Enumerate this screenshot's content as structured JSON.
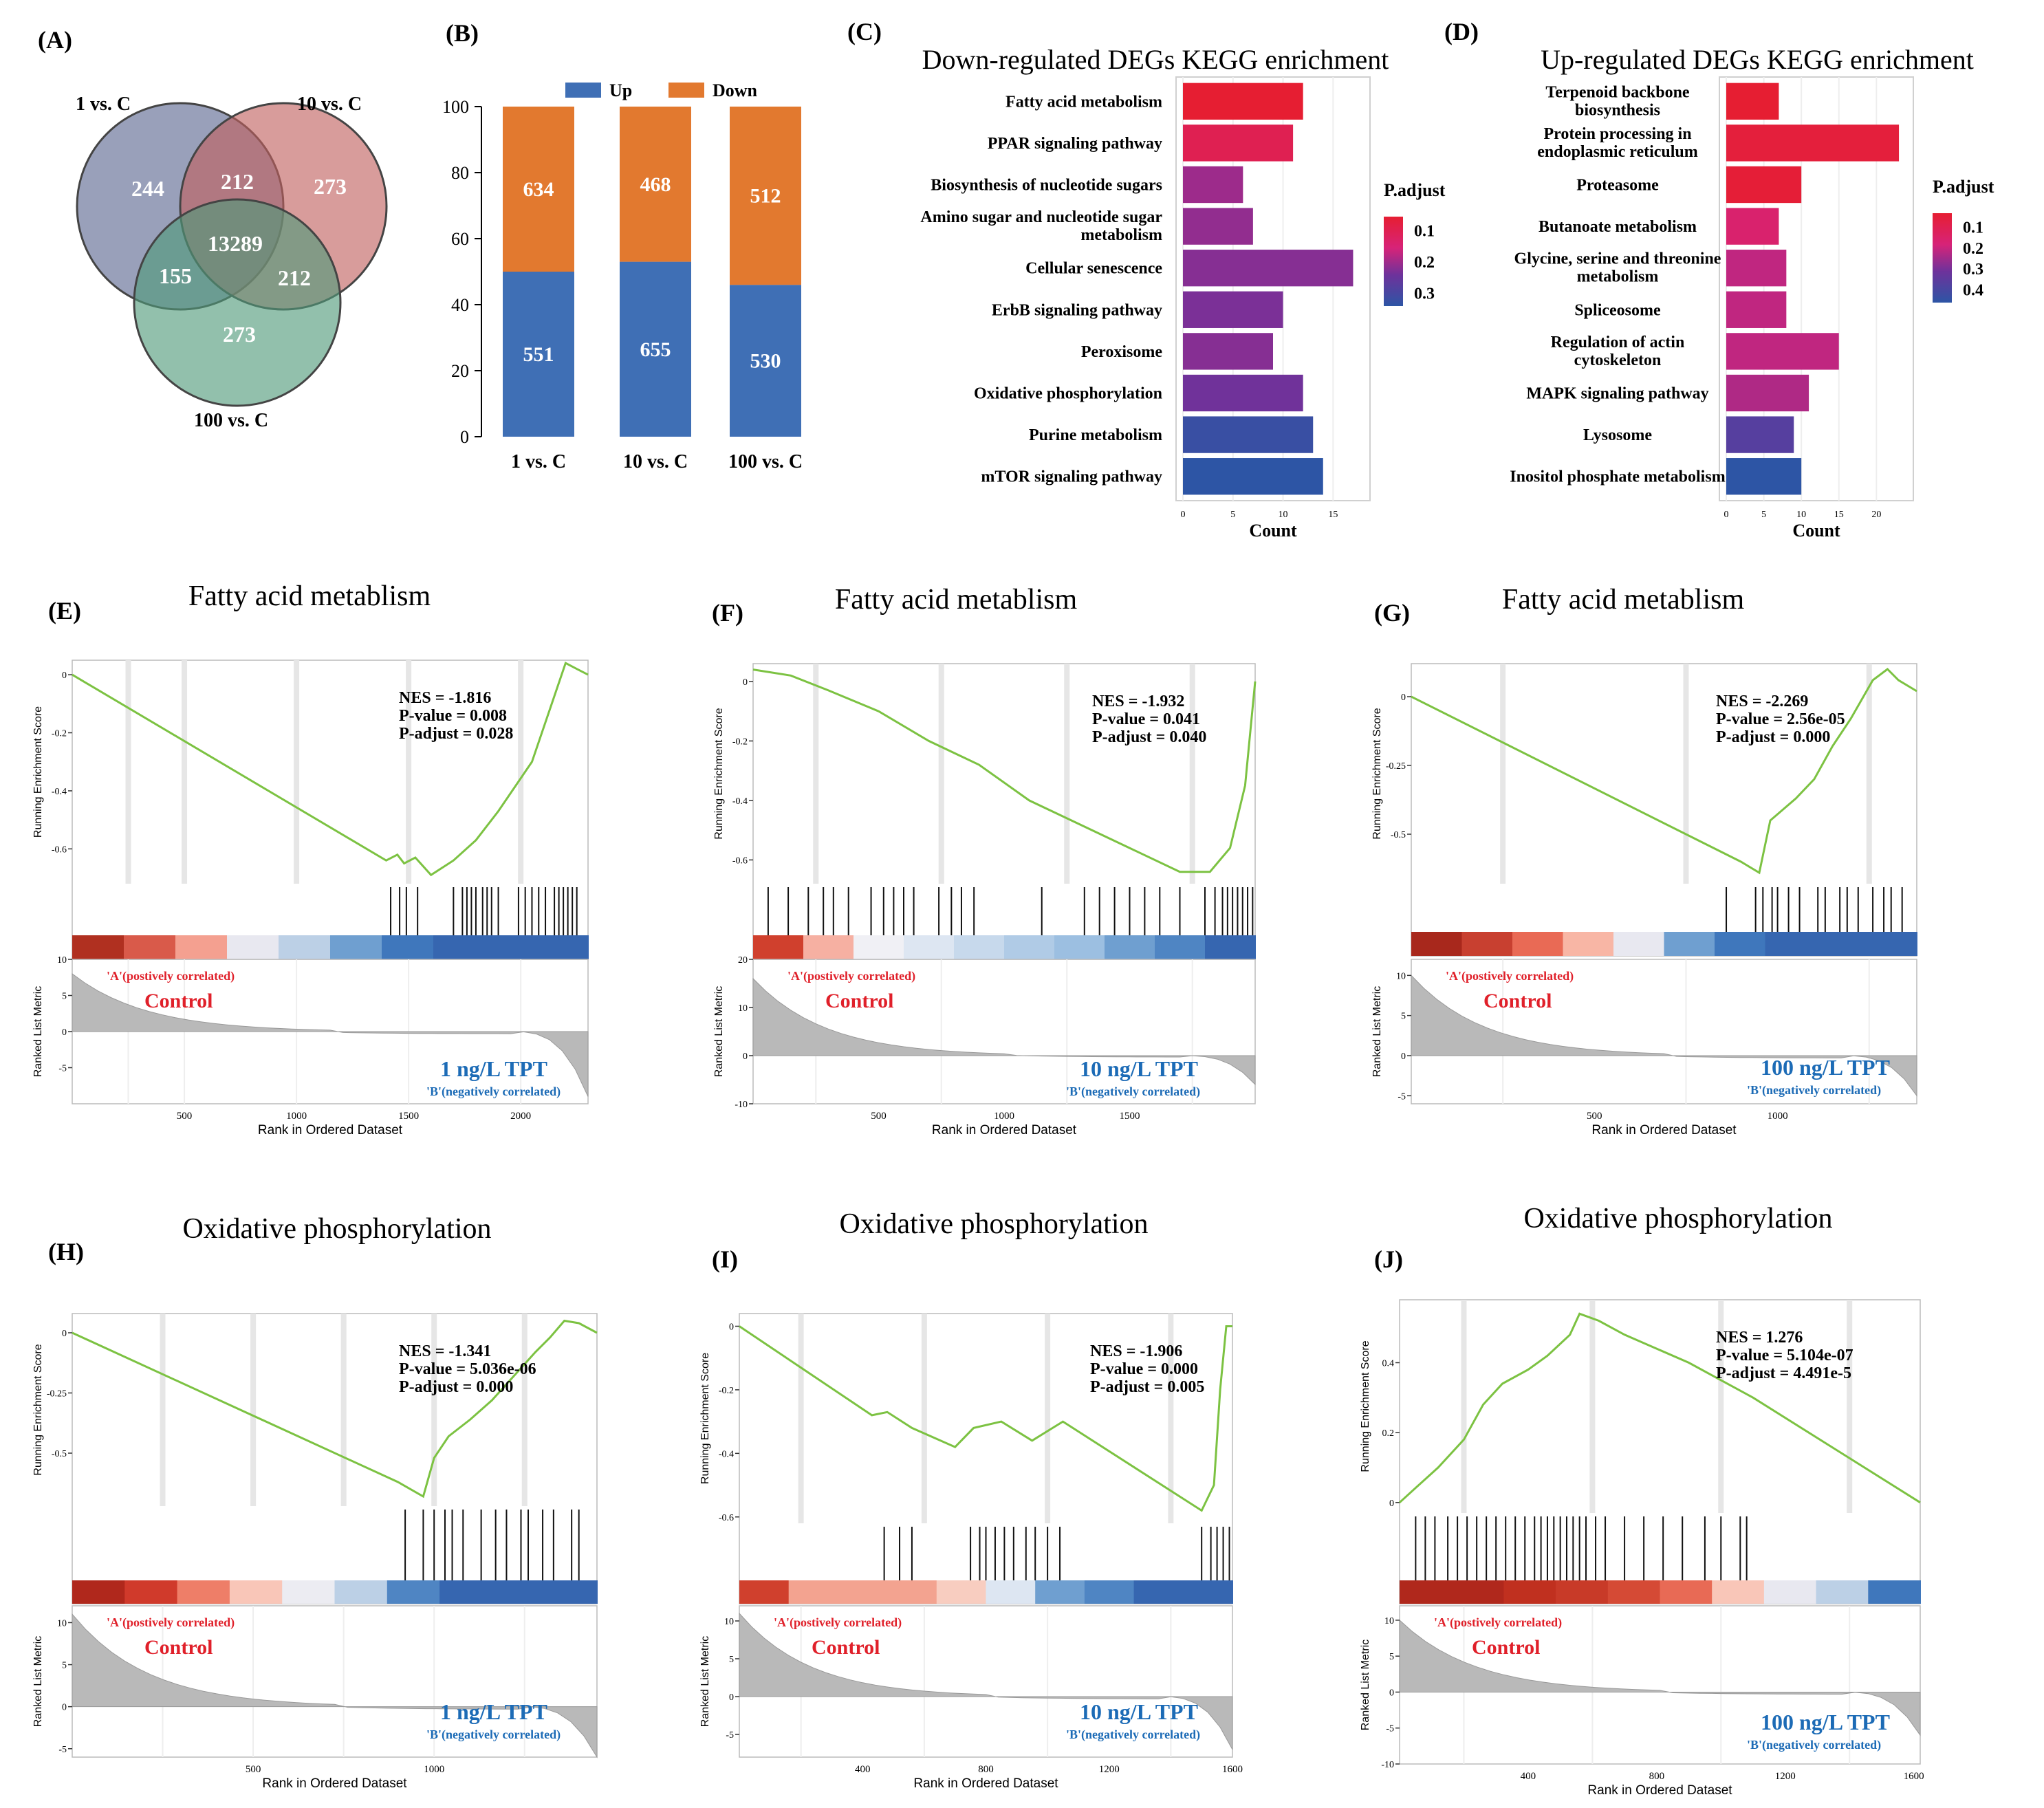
{
  "panels": {
    "A": {
      "label": "(A)",
      "sets": [
        "1 vs. C",
        "10 vs. C",
        "100 vs. C"
      ],
      "colors": [
        "#5b6690",
        "#c0605d",
        "#4f9a79"
      ],
      "regions": {
        "only1": "244",
        "only10": "273",
        "only100": "273",
        "ab": "212",
        "ac": "155",
        "bc": "212",
        "abc": "13289"
      }
    },
    "B": {
      "label": "(B)",
      "legend": [
        "Up",
        "Down"
      ],
      "colors": {
        "Up": "#3f6fb5",
        "Down": "#e2792f"
      }
    },
    "C": {
      "label": "(C)"
    },
    "D": {
      "label": "(D)"
    },
    "E": {
      "label": "(E)"
    },
    "F": {
      "label": "(F)"
    },
    "G": {
      "label": "(G)"
    },
    "H": {
      "label": "(H)"
    },
    "I": {
      "label": "(I)"
    },
    "J": {
      "label": "(J)"
    }
  },
  "gsea_common": {
    "ylabel_top": "Running Enrichment Score",
    "ylabel_bottom": "Ranked List Metric",
    "xlabel": "Rank in Ordered Dataset",
    "pos_label": "'A'(postively correlated)",
    "neg_label": "'B'(negatively correlated)",
    "control": "Control"
  },
  "chart_data": [
    {
      "type": "bar",
      "id": "B",
      "stacked": true,
      "categories": [
        "1 vs. C",
        "10 vs. C",
        "100 vs. C"
      ],
      "series": [
        {
          "name": "Up",
          "values": [
            50,
            53,
            46
          ],
          "labels": [
            "551",
            "655",
            "530"
          ]
        },
        {
          "name": "Down",
          "values": [
            50,
            47,
            54
          ],
          "labels": [
            "634",
            "468",
            "512"
          ]
        }
      ],
      "ylim": [
        0,
        100
      ],
      "yticks": [
        0,
        20,
        40,
        60,
        80,
        100
      ]
    },
    {
      "type": "bar",
      "id": "C",
      "orientation": "horizontal",
      "title": "Down-regulated DEGs KEGG enrichment",
      "xlabel": "Count",
      "xlim": [
        0,
        18
      ],
      "xticks": [
        0,
        5,
        10,
        15
      ],
      "categories": [
        "Fatty acid metabolism",
        "PPAR signaling pathway",
        "Biosynthesis of nucleotide sugars",
        "Amino sugar and nucleotide sugar metabolism",
        "Cellular senescence",
        "ErbB signaling pathway",
        "Peroxisome",
        "Oxidative phosphorylation",
        "Purine metabolism",
        "mTOR signaling pathway"
      ],
      "values": [
        12,
        11,
        6,
        7,
        17,
        10,
        9,
        12,
        13,
        14
      ],
      "padjust": [
        0.05,
        0.1,
        0.21,
        0.22,
        0.23,
        0.24,
        0.23,
        0.25,
        0.34,
        0.36
      ],
      "legend_title": "P.adjust",
      "legend_ticks": [
        "0.1",
        "0.2",
        "0.3"
      ]
    },
    {
      "type": "bar",
      "id": "D",
      "orientation": "horizontal",
      "title": "Up-regulated DEGs KEGG enrichment",
      "xlabel": "Count",
      "xlim": [
        0,
        24
      ],
      "xticks": [
        0,
        5,
        10,
        15,
        20
      ],
      "categories": [
        "Terpenoid backbone biosynthesis",
        "Protein processing in endoplasmic reticulum",
        "Proteasome",
        "Butanoate metabolism",
        "Glycine, serine and threonine metabolism",
        "Spliceosome",
        "Regulation of actin cytoskeleton",
        "MAPK signaling pathway",
        "Lysosome",
        "Inositol phosphate metabolism"
      ],
      "values": [
        7,
        23,
        10,
        7,
        8,
        8,
        15,
        11,
        9,
        10
      ],
      "padjust": [
        0.03,
        0.05,
        0.04,
        0.15,
        0.2,
        0.2,
        0.2,
        0.22,
        0.35,
        0.44
      ],
      "legend_title": "P.adjust",
      "legend_ticks": [
        "0.1",
        "0.2",
        "0.3",
        "0.4"
      ]
    },
    {
      "type": "line",
      "id": "E",
      "title": "Fatty acid metablism",
      "stats": [
        "NES = -1.816",
        "P-value = 0.008",
        "P-adjust = 0.028"
      ],
      "group": "1 ng/L TPT",
      "x": [
        0,
        1400,
        1450,
        1480,
        1530,
        1600,
        1700,
        1800,
        1900,
        2050,
        2200,
        2250,
        2300
      ],
      "y": [
        0,
        -0.64,
        -0.62,
        -0.65,
        -0.63,
        -0.69,
        -0.64,
        -0.57,
        -0.47,
        -0.3,
        0.04,
        0.02,
        0.0
      ],
      "xlim": [
        0,
        2300
      ],
      "ylim": [
        -0.72,
        0.05
      ],
      "yticks": [
        0.0,
        -0.2,
        -0.4,
        -0.6
      ],
      "xticks": [
        500,
        1000,
        1500,
        2000
      ],
      "metric_ticks": [
        10,
        5,
        0,
        -5
      ],
      "metric_range": [
        -10,
        10
      ],
      "metric_start": 8,
      "metric_end": -9,
      "hits": [
        1420,
        1460,
        1490,
        1540,
        1700,
        1740,
        1760,
        1780,
        1800,
        1830,
        1850,
        1870,
        1900,
        1990,
        2020,
        2050,
        2080,
        2110,
        2150,
        2170,
        2190,
        2210,
        2230,
        2250
      ],
      "heat": [
        "#b03020",
        "#d95a4a",
        "#f4a090",
        "#e8e8f0",
        "#bcd0e6",
        "#6f9fd0",
        "#3f77bc",
        "#3666b0",
        "#3666b0",
        "#3666b0"
      ],
      "light_lines": [
        250,
        500,
        1000,
        1500,
        2000
      ]
    },
    {
      "type": "line",
      "id": "F",
      "title": "Fatty acid metablism",
      "stats": [
        "NES = -1.932",
        "P-value = 0.041",
        "P-adjust = 0.040"
      ],
      "group": "10 ng/L TPT",
      "x": [
        0,
        150,
        300,
        500,
        700,
        900,
        1100,
        1300,
        1500,
        1700,
        1820,
        1900,
        1960,
        2000
      ],
      "y": [
        0.04,
        0.02,
        -0.03,
        -0.1,
        -0.2,
        -0.28,
        -0.4,
        -0.48,
        -0.56,
        -0.64,
        -0.64,
        -0.56,
        -0.35,
        0.0
      ],
      "xlim": [
        0,
        2000
      ],
      "ylim": [
        -0.68,
        0.06
      ],
      "yticks": [
        0.0,
        -0.2,
        -0.4,
        -0.6
      ],
      "xticks": [
        500,
        1000,
        1500
      ],
      "metric_ticks": [
        20,
        10,
        0,
        -10
      ],
      "metric_range": [
        -10,
        20
      ],
      "metric_start": 16,
      "metric_end": -6,
      "hits": [
        60,
        140,
        220,
        280,
        320,
        380,
        470,
        520,
        560,
        600,
        640,
        740,
        790,
        830,
        880,
        1150,
        1320,
        1380,
        1440,
        1500,
        1560,
        1620,
        1700,
        1800,
        1840,
        1870,
        1890,
        1910,
        1930,
        1950,
        1970,
        1990
      ],
      "heat": [
        "#d0402d",
        "#f6b0a2",
        "#f0f0f5",
        "#dde6f2",
        "#c7d9ec",
        "#b0cbe6",
        "#9cbfe1",
        "#6f9fd0",
        "#4f85c3",
        "#3666b0"
      ],
      "light_lines": [
        250,
        750,
        1250,
        1750
      ]
    },
    {
      "type": "line",
      "id": "G",
      "title": "Fatty acid metablism",
      "stats": [
        "NES = -2.269",
        "P-value = 2.56e-05",
        "P-adjust = 0.000"
      ],
      "group": "100 ng/L TPT",
      "x": [
        0,
        900,
        950,
        980,
        1050,
        1100,
        1150,
        1200,
        1260,
        1300,
        1330,
        1380
      ],
      "y": [
        0.0,
        -0.6,
        -0.64,
        -0.45,
        -0.37,
        -0.3,
        -0.18,
        -0.08,
        0.06,
        0.1,
        0.06,
        0.02
      ],
      "xlim": [
        0,
        1380
      ],
      "ylim": [
        -0.68,
        0.12
      ],
      "yticks": [
        0.0,
        -0.25,
        -0.5
      ],
      "xticks": [
        500,
        1000
      ],
      "metric_ticks": [
        10,
        5,
        0,
        -5
      ],
      "metric_range": [
        -6,
        12
      ],
      "metric_start": 10,
      "metric_end": -5,
      "hits": [
        860,
        940,
        960,
        985,
        1000,
        1030,
        1060,
        1110,
        1130,
        1170,
        1190,
        1220,
        1260,
        1290,
        1310,
        1340
      ],
      "heat": [
        "#a8281c",
        "#c84030",
        "#e96a55",
        "#f8b6a5",
        "#e8e8f0",
        "#6f9fd0",
        "#3f77bc",
        "#3666b0",
        "#3666b0",
        "#3666b0"
      ],
      "light_lines": [
        250,
        750,
        1250
      ]
    },
    {
      "type": "line",
      "id": "H",
      "title": "Oxidative phosphorylation",
      "stats": [
        "NES = -1.341",
        "P-value = 5.036e-06",
        "P-adjust = 0.000"
      ],
      "group": "1 ng/L TPT",
      "x": [
        0,
        900,
        970,
        1000,
        1040,
        1100,
        1160,
        1220,
        1280,
        1320,
        1360,
        1400,
        1450
      ],
      "y": [
        0.0,
        -0.62,
        -0.68,
        -0.52,
        -0.43,
        -0.36,
        -0.28,
        -0.18,
        -0.08,
        -0.02,
        0.05,
        0.04,
        0.0
      ],
      "xlim": [
        0,
        1450
      ],
      "ylim": [
        -0.72,
        0.08
      ],
      "yticks": [
        0.0,
        -0.25,
        -0.5
      ],
      "xticks": [
        500,
        1000
      ],
      "metric_ticks": [
        10,
        5,
        0,
        -5
      ],
      "metric_range": [
        -6,
        12
      ],
      "metric_start": 11,
      "metric_end": -6,
      "hits": [
        920,
        970,
        1000,
        1030,
        1050,
        1080,
        1130,
        1170,
        1200,
        1240,
        1260,
        1300,
        1330,
        1380,
        1400
      ],
      "heat": [
        "#b0281c",
        "#d03a2b",
        "#ee7e68",
        "#f9c6b8",
        "#ececf2",
        "#bcd0e6",
        "#4f85c3",
        "#3666b0",
        "#3666b0",
        "#3666b0"
      ],
      "light_lines": [
        250,
        500,
        750,
        1000,
        1250
      ]
    },
    {
      "type": "line",
      "id": "I",
      "title": "Oxidative phosphorylation",
      "stats": [
        "NES = -1.906",
        "P-value = 0.000",
        "P-adjust = 0.005"
      ],
      "group": "10 ng/L TPT",
      "x": [
        0,
        430,
        480,
        560,
        700,
        760,
        850,
        950,
        1050,
        1500,
        1540,
        1560,
        1580,
        1600
      ],
      "y": [
        0.0,
        -0.28,
        -0.27,
        -0.32,
        -0.38,
        -0.32,
        -0.3,
        -0.36,
        -0.3,
        -0.58,
        -0.5,
        -0.2,
        0.0,
        0.0
      ],
      "xlim": [
        0,
        1600
      ],
      "ylim": [
        -0.62,
        0.04
      ],
      "yticks": [
        0.0,
        -0.2,
        -0.4,
        -0.6
      ],
      "xticks": [
        400,
        800,
        1200,
        1600
      ],
      "metric_ticks": [
        10,
        5,
        0,
        -5
      ],
      "metric_range": [
        -8,
        12
      ],
      "metric_start": 11,
      "metric_end": -7,
      "hits": [
        470,
        520,
        560,
        750,
        780,
        800,
        830,
        860,
        890,
        930,
        960,
        1000,
        1040,
        1500,
        1530,
        1550,
        1570,
        1590
      ],
      "heat": [
        "#d0402d",
        "#f3a390",
        "#f3a390",
        "#f3a390",
        "#f8cdc0",
        "#dde6f2",
        "#6f9fd0",
        "#4f85c3",
        "#3666b0",
        "#3666b0"
      ],
      "light_lines": [
        200,
        600,
        1000,
        1400
      ]
    },
    {
      "type": "line",
      "id": "J",
      "title": "Oxidative phosphorylation",
      "stats": [
        "NES = 1.276",
        "P-value = 5.104e-07",
        "P-adjust = 4.491e-5"
      ],
      "group": "100 ng/L TPT",
      "x": [
        0,
        60,
        120,
        200,
        260,
        320,
        400,
        460,
        530,
        560,
        620,
        700,
        800,
        900,
        1000,
        1100,
        1620
      ],
      "y": [
        0.0,
        0.05,
        0.1,
        0.18,
        0.28,
        0.34,
        0.38,
        0.42,
        0.48,
        0.54,
        0.52,
        0.48,
        0.44,
        0.4,
        0.35,
        0.3,
        0.0
      ],
      "xlim": [
        0,
        1620
      ],
      "ylim": [
        -0.03,
        0.58
      ],
      "yticks": [
        0.0,
        0.2,
        0.4
      ],
      "xticks": [
        400,
        800,
        1200,
        1600
      ],
      "metric_ticks": [
        10,
        5,
        0,
        -5,
        -10
      ],
      "metric_range": [
        -10,
        12
      ],
      "metric_start": 10,
      "metric_end": -6,
      "hits": [
        50,
        80,
        110,
        150,
        180,
        210,
        240,
        270,
        300,
        330,
        360,
        390,
        420,
        440,
        460,
        480,
        500,
        520,
        540,
        560,
        580,
        610,
        640,
        700,
        760,
        820,
        880,
        950,
        1000,
        1060,
        1080
      ],
      "heat": [
        "#b0281c",
        "#b0281c",
        "#c0301f",
        "#c83a28",
        "#d54a35",
        "#e86a55",
        "#f9c6b8",
        "#e8e8f0",
        "#bcd0e6",
        "#3f77bc"
      ],
      "light_lines": [
        200,
        600,
        1000,
        1400
      ]
    }
  ]
}
